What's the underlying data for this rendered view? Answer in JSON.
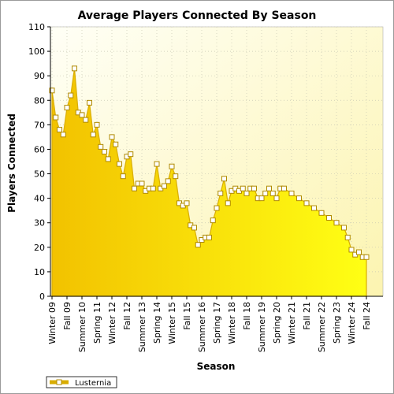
{
  "chart_data": {
    "type": "area",
    "title": "Average Players Connected By Season",
    "xlabel": "Season",
    "ylabel": "Players Connected",
    "ylim": [
      0,
      110
    ],
    "yticks": [
      0,
      10,
      20,
      30,
      40,
      50,
      60,
      70,
      80,
      90,
      100,
      110
    ],
    "grid": true,
    "legend_position": "bottom-left",
    "x_tick_labels": [
      "Winter 09",
      "Fall 09",
      "Summer 10",
      "Spring 11",
      "Winter 12",
      "Fall 12",
      "Summer 13",
      "Spring 14",
      "Winter 15",
      "Fall 15",
      "Summer 16",
      "Spring 17",
      "Winter 18",
      "Fall 18",
      "Summer 19",
      "Spring 20",
      "Winter 21",
      "Fall 21",
      "Summer 22",
      "Spring 23",
      "Winter 24",
      "Fall 24"
    ],
    "series": [
      {
        "name": "Lusternia",
        "color_top": "#f2c200",
        "color_bottom": "#ffff14",
        "marker": "square",
        "x": [
          0,
          0.5,
          1,
          1.5,
          2,
          2.5,
          3,
          3.5,
          4,
          4.5,
          5,
          5.5,
          6,
          6.5,
          7,
          7.5,
          8,
          8.5,
          9,
          9.5,
          10,
          10.5,
          11,
          11.5,
          12,
          12.5,
          13,
          13.5,
          14,
          14.5,
          15,
          15.5,
          16,
          16.5,
          17,
          17.5,
          18,
          18.5,
          19,
          19.5,
          20,
          20.5,
          21,
          21.5,
          22,
          22.5,
          23,
          23.5,
          24,
          24.5,
          25,
          25.5,
          26,
          26.5,
          27,
          27.5,
          28,
          28.5,
          29,
          29.5,
          30,
          30.5,
          31,
          32,
          33,
          34,
          35,
          36,
          37,
          38,
          39,
          39.5,
          40,
          40.5,
          41,
          41.5,
          42
        ],
        "values": [
          84,
          73,
          68,
          66,
          77,
          82,
          93,
          75,
          74,
          72,
          79,
          66,
          70,
          61,
          59,
          56,
          65,
          62,
          54,
          49,
          57,
          58,
          44,
          46,
          46,
          43,
          44,
          44,
          54,
          44,
          45,
          47,
          53,
          49,
          38,
          37,
          38,
          29,
          28,
          21,
          23,
          24,
          24,
          31,
          36,
          42,
          48,
          38,
          43,
          44,
          43,
          44,
          42,
          44,
          44,
          40,
          40,
          42,
          44,
          42,
          40,
          44,
          44,
          42,
          40,
          38,
          36,
          34,
          32,
          30,
          28,
          24,
          19,
          17,
          18,
          16,
          16
        ]
      }
    ]
  }
}
